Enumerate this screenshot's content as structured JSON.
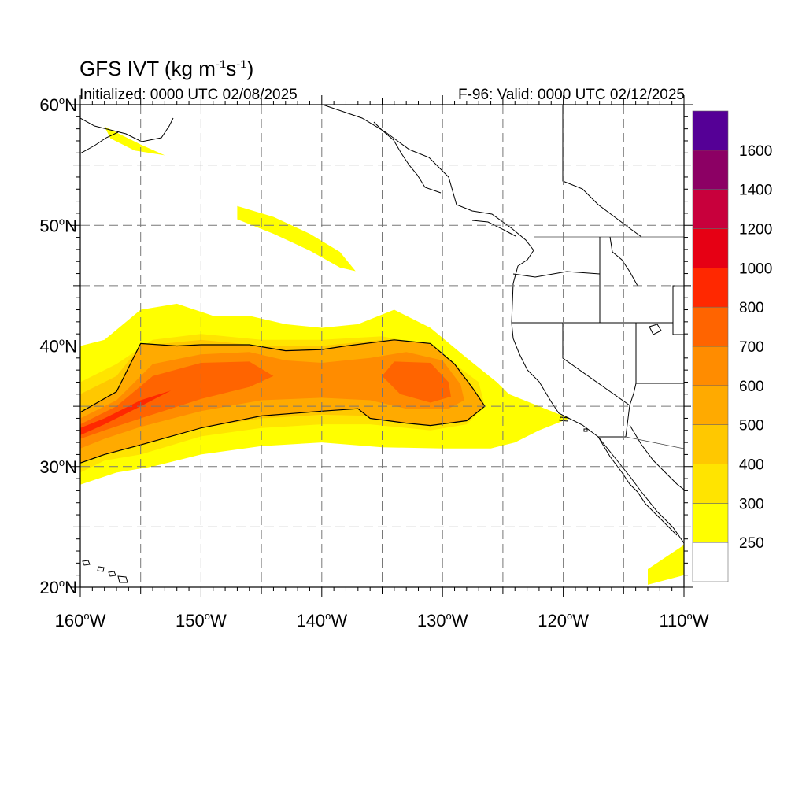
{
  "title": {
    "text": "GFS IVT (kg m",
    "sup1": "-1",
    "mid": "s",
    "sup2": "-1",
    "end": ")"
  },
  "initialized": "Initialized: 0000 UTC 02/08/2025",
  "valid": "F-96: Valid: 0000 UTC 02/12/2025",
  "map": {
    "lon_range": [
      -160,
      -110
    ],
    "lat_range": [
      20,
      60
    ],
    "lon_ticks": [
      {
        "value": -160,
        "label": "160",
        "suffix": "W"
      },
      {
        "value": -150,
        "label": "150",
        "suffix": "W"
      },
      {
        "value": -140,
        "label": "140",
        "suffix": "W"
      },
      {
        "value": -130,
        "label": "130",
        "suffix": "W"
      },
      {
        "value": -120,
        "label": "120",
        "suffix": "W"
      },
      {
        "value": -110,
        "label": "110",
        "suffix": "W"
      }
    ],
    "lat_ticks": [
      {
        "value": 60,
        "label": "60",
        "suffix": "N"
      },
      {
        "value": 50,
        "label": "50",
        "suffix": "N"
      },
      {
        "value": 40,
        "label": "40",
        "suffix": "N"
      },
      {
        "value": 30,
        "label": "30",
        "suffix": "N"
      },
      {
        "value": 20,
        "label": "20",
        "suffix": "N"
      }
    ],
    "grid_lon_step": 5,
    "grid_lat_step": 5,
    "degree_symbol": "o"
  },
  "colorbar": {
    "colors": [
      "#ffffff",
      "#ffff00",
      "#ffe400",
      "#ffc800",
      "#ffaa00",
      "#ff8c00",
      "#ff6400",
      "#ff2800",
      "#e60014",
      "#c8003c",
      "#8c0064",
      "#550096"
    ],
    "labels": [
      "250",
      "300",
      "400",
      "500",
      "600",
      "700",
      "800",
      "1000",
      "1200",
      "1400",
      "1600"
    ]
  },
  "ivt_field": {
    "units": "kg m-1 s-1",
    "contour_level": 500,
    "regions": [
      {
        "level": 250,
        "polygon": [
          [
            -160,
            40
          ],
          [
            -158,
            40.5
          ],
          [
            -155,
            43
          ],
          [
            -152,
            43.5
          ],
          [
            -149,
            42.5
          ],
          [
            -146,
            42.5
          ],
          [
            -143,
            41.8
          ],
          [
            -140,
            41.5
          ],
          [
            -137,
            41.8
          ],
          [
            -134,
            43
          ],
          [
            -131,
            41.5
          ],
          [
            -128,
            39
          ],
          [
            -125.5,
            37
          ],
          [
            -124.5,
            36
          ],
          [
            -122,
            35
          ],
          [
            -119.5,
            34
          ],
          [
            -122,
            33
          ],
          [
            -124,
            32
          ],
          [
            -126,
            31.5
          ],
          [
            -130,
            31.5
          ],
          [
            -135,
            31.6
          ],
          [
            -140,
            32
          ],
          [
            -145,
            31.7
          ],
          [
            -150,
            31
          ],
          [
            -154,
            30
          ],
          [
            -157,
            29.5
          ],
          [
            -160,
            28.5
          ]
        ]
      },
      {
        "level": 250,
        "polygon": [
          [
            -158,
            58.2
          ],
          [
            -155,
            56.7
          ],
          [
            -153,
            55.8
          ],
          [
            -155.5,
            56.2
          ],
          [
            -157.5,
            57.2
          ]
        ]
      },
      {
        "level": 250,
        "polygon": [
          [
            -147,
            51.6
          ],
          [
            -144,
            50.7
          ],
          [
            -141,
            49.3
          ],
          [
            -138.5,
            47.8
          ],
          [
            -137.2,
            46.2
          ],
          [
            -138.5,
            46.5
          ],
          [
            -141,
            47.9
          ],
          [
            -144,
            49.3
          ],
          [
            -147,
            50.5
          ]
        ]
      },
      {
        "level": 250,
        "polygon": [
          [
            -113,
            21.5
          ],
          [
            -110,
            23.5
          ],
          [
            -110,
            21
          ],
          [
            -113,
            20.2
          ]
        ]
      },
      {
        "level": 300,
        "polygon": [
          [
            -160,
            37
          ],
          [
            -157,
            38.5
          ],
          [
            -154,
            40.5
          ],
          [
            -150,
            41
          ],
          [
            -145,
            40.5
          ],
          [
            -140,
            40.5
          ],
          [
            -135,
            40.8
          ],
          [
            -131,
            40
          ],
          [
            -127,
            37
          ],
          [
            -126.5,
            35
          ],
          [
            -128,
            33.5
          ],
          [
            -131,
            33
          ],
          [
            -136,
            33.5
          ],
          [
            -140,
            33.5
          ],
          [
            -145,
            33.2
          ],
          [
            -150,
            32.5
          ],
          [
            -155,
            31
          ],
          [
            -158,
            30.5
          ],
          [
            -160,
            29.5
          ]
        ]
      },
      {
        "level": 400,
        "polygon": [
          [
            -160,
            36
          ],
          [
            -157,
            37.5
          ],
          [
            -155,
            40
          ],
          [
            -150,
            40.5
          ],
          [
            -145,
            40
          ],
          [
            -140,
            40
          ],
          [
            -135,
            40.5
          ],
          [
            -131,
            39.8
          ],
          [
            -128,
            37
          ],
          [
            -127,
            35
          ],
          [
            -128.5,
            34
          ],
          [
            -131,
            33.6
          ],
          [
            -136,
            34.2
          ],
          [
            -140,
            34.3
          ],
          [
            -145,
            34
          ],
          [
            -150,
            33.2
          ],
          [
            -155,
            32
          ],
          [
            -158,
            31
          ],
          [
            -160,
            30.5
          ]
        ]
      },
      {
        "level": 500,
        "polygon": [
          [
            -160,
            34.5
          ],
          [
            -157,
            36.2
          ],
          [
            -155,
            40.2
          ],
          [
            -152,
            40
          ],
          [
            -150,
            40.1
          ],
          [
            -146,
            40.1
          ],
          [
            -143,
            39.6
          ],
          [
            -140,
            39.7
          ],
          [
            -138,
            40
          ],
          [
            -134,
            40.5
          ],
          [
            -131,
            40.2
          ],
          [
            -129,
            38.5
          ],
          [
            -127.5,
            36.5
          ],
          [
            -126.5,
            35
          ],
          [
            -128,
            33.8
          ],
          [
            -131,
            33.4
          ],
          [
            -133,
            33.6
          ],
          [
            -136,
            34
          ],
          [
            -137,
            34.8
          ],
          [
            -140,
            34.6
          ],
          [
            -145,
            34.2
          ],
          [
            -150,
            33.2
          ],
          [
            -155,
            31.8
          ],
          [
            -158,
            31
          ],
          [
            -160,
            30.3
          ]
        ]
      },
      {
        "level": 600,
        "polygon": [
          [
            -160,
            34
          ],
          [
            -157,
            35.5
          ],
          [
            -154,
            38.5
          ],
          [
            -150,
            39.3
          ],
          [
            -146,
            39.5
          ],
          [
            -143,
            38.8
          ],
          [
            -140,
            38.6
          ],
          [
            -136,
            39
          ],
          [
            -133,
            39.5
          ],
          [
            -130,
            38.8
          ],
          [
            -128.5,
            36.8
          ],
          [
            -128.2,
            35.5
          ],
          [
            -129.5,
            34.8
          ],
          [
            -133,
            34.8
          ],
          [
            -136,
            35.5
          ],
          [
            -140,
            35.7
          ],
          [
            -145,
            35.5
          ],
          [
            -150,
            34.6
          ],
          [
            -155,
            33.3
          ],
          [
            -158,
            32.3
          ],
          [
            -160,
            31.5
          ]
        ]
      },
      {
        "level": 700,
        "polygon": [
          [
            -160,
            33.5
          ],
          [
            -157,
            35
          ],
          [
            -154,
            37.5
          ],
          [
            -150,
            38.6
          ],
          [
            -146,
            38.7
          ],
          [
            -144,
            37.5
          ],
          [
            -146,
            36.6
          ],
          [
            -150,
            35.6
          ],
          [
            -155,
            34
          ],
          [
            -158,
            33
          ],
          [
            -160,
            32.3
          ]
        ]
      },
      {
        "level": 700,
        "polygon": [
          [
            -134,
            38.7
          ],
          [
            -131,
            38.6
          ],
          [
            -129.5,
            37
          ],
          [
            -129.3,
            35.8
          ],
          [
            -131,
            35.3
          ],
          [
            -133.5,
            36
          ],
          [
            -135,
            37.5
          ]
        ]
      },
      {
        "level": 800,
        "polygon": [
          [
            -160,
            33.2
          ],
          [
            -158,
            34
          ],
          [
            -155,
            35.5
          ],
          [
            -152.5,
            36.3
          ],
          [
            -155,
            35
          ],
          [
            -158,
            33.5
          ],
          [
            -160,
            32.6
          ]
        ]
      }
    ]
  }
}
